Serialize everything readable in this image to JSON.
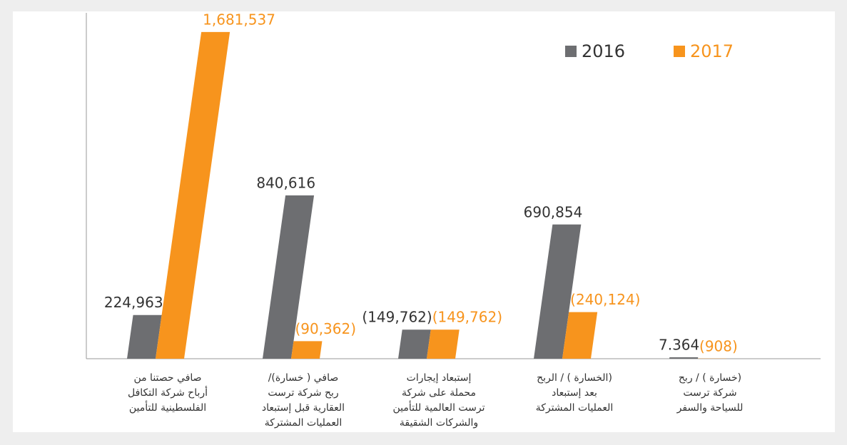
{
  "chart_data": {
    "type": "bar",
    "categories": [
      [
        "صافي حصتنا من",
        "أرباح شركة التكافل",
        "الفلسطينية للتأمين"
      ],
      [
        "صافي ( خسارة)/",
        "ربح شركة ترست",
        "العقارية قبل إستبعاد",
        "العمليات المشتركة"
      ],
      [
        "إستبعاد إيجارات",
        "محملة على شركة",
        "ترست العالمية للتأمين",
        "والشركات الشقيقة"
      ],
      [
        "(الخسارة ) / الربح",
        "بعد إستبعاد",
        "العمليات المشتركة"
      ],
      [
        "(خسارة ) / ربح",
        "شركة ترست",
        "للسياحة والسفر"
      ]
    ],
    "series": [
      {
        "name": "2016",
        "color": "#6d6e71",
        "values": [
          224963,
          840616,
          -149762,
          690854,
          7364
        ],
        "value_labels": [
          "224,963",
          "840,616",
          "(149,762)",
          "690,854",
          "7.364"
        ]
      },
      {
        "name": "2017",
        "color": "#f7941d",
        "values": [
          1681537,
          -90362,
          -149762,
          -240124,
          -908
        ],
        "value_labels": [
          "1,681,537",
          "(90,362)",
          "(149,762)",
          "(240,124)",
          "(908)"
        ]
      }
    ],
    "ylim": [
      0,
      1780000
    ],
    "legend": "top-right"
  }
}
